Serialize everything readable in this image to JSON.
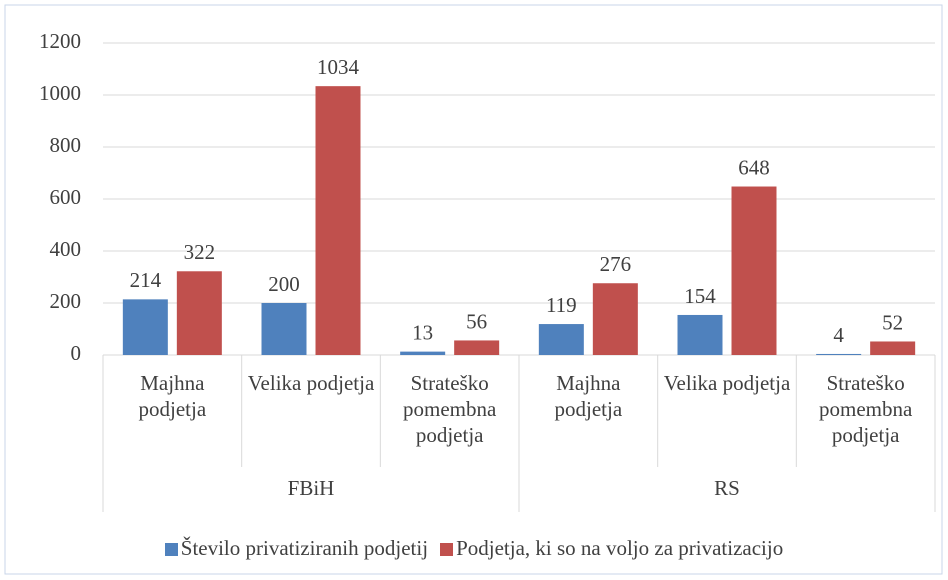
{
  "chart_data": {
    "type": "bar",
    "categories": [
      "Majhna podjetja",
      "Velika podjetja",
      "Strateško pomembna podjetja",
      "Majhna podjetja",
      "Velika podjetja",
      "Strateško pomembna podjetja"
    ],
    "groups": [
      "FBiH",
      "RS"
    ],
    "series": [
      {
        "name": "Število privatiziranih podjetij",
        "color": "#4f81bd",
        "values": [
          214,
          200,
          13,
          119,
          154,
          4
        ]
      },
      {
        "name": "Podjetja, ki so na voljo za privatizacijo",
        "color": "#c0504d",
        "values": [
          322,
          1034,
          56,
          276,
          648,
          52
        ]
      }
    ],
    "ylim": [
      0,
      1200
    ],
    "yticks": [
      0,
      200,
      400,
      600,
      800,
      1000,
      1200
    ],
    "grid": true,
    "legend": "bottom"
  }
}
